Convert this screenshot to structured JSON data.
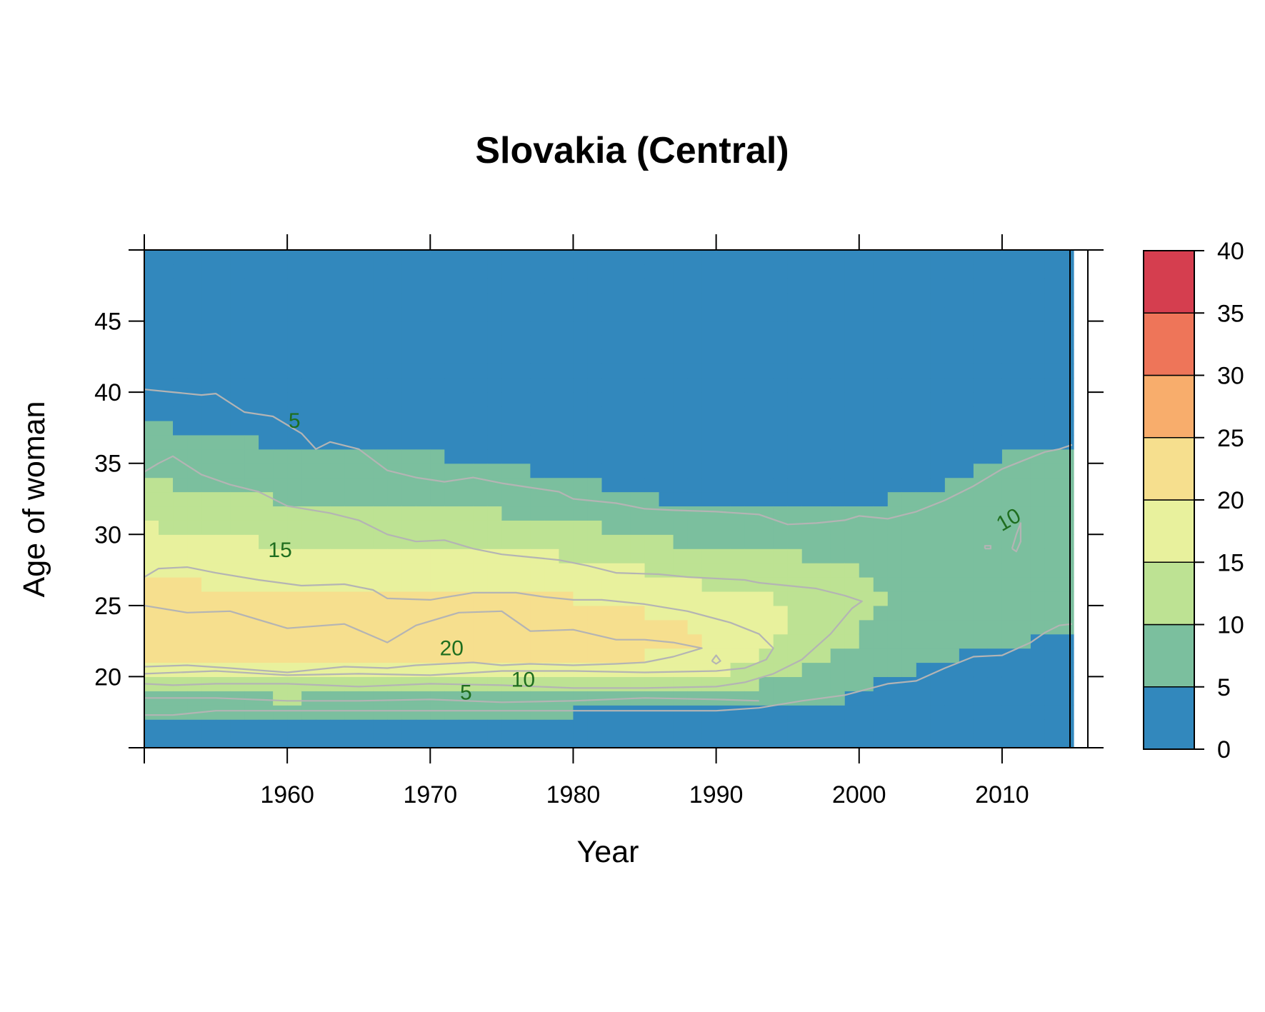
{
  "chart_data": {
    "type": "heatmap",
    "title": "Slovakia (Central)",
    "xlabel": "Year",
    "ylabel": "Age of woman",
    "xlim": [
      1950,
      2016
    ],
    "ylim": [
      15,
      50
    ],
    "x_ticks": [
      "1960",
      "1970",
      "1980",
      "1990",
      "2000",
      "2010"
    ],
    "y_ticks": [
      "20",
      "25",
      "30",
      "35",
      "40",
      "45"
    ],
    "colorbar": {
      "breaks": [
        0,
        5,
        10,
        15,
        20,
        25,
        30,
        35,
        40
      ],
      "labels": [
        "0",
        "5",
        "10",
        "15",
        "20",
        "25",
        "30",
        "35",
        "40"
      ],
      "colors": [
        "#3288bd",
        "#7bbf9e",
        "#bde293",
        "#e8f19d",
        "#f6df8e",
        "#f8ad6c",
        "#ee7559",
        "#d53e4f"
      ]
    },
    "contour_color": "#b4b4b4",
    "label_color": "#1f6e1f",
    "contour_labels": [
      {
        "text": "5",
        "year": 1960.5,
        "age": 37.5,
        "angle": 0
      },
      {
        "text": "15",
        "year": 1959.5,
        "age": 28.4,
        "angle": 0
      },
      {
        "text": "20",
        "year": 1971.5,
        "age": 21.5,
        "angle": 0
      },
      {
        "text": "5",
        "year": 1972.5,
        "age": 18.4,
        "angle": 0
      },
      {
        "text": "10",
        "year": 1976.5,
        "age": 19.3,
        "angle": 0
      },
      {
        "text": "10",
        "year": 2010.7,
        "age": 30.6,
        "angle": -30
      }
    ],
    "contours": [
      {
        "level": 5,
        "year": [
          1950,
          1952,
          1954,
          1955,
          1957,
          1959,
          1961,
          1962,
          1963,
          1965,
          1967,
          1969,
          1971,
          1973,
          1975,
          1977,
          1979,
          1980,
          1983,
          1985,
          1987,
          1990,
          1993,
          1995,
          1997,
          1999,
          2000,
          2002,
          2004,
          2006,
          2008,
          2010,
          2011,
          2012,
          2013,
          2014,
          2014.9
        ],
        "age": [
          40.2,
          40.0,
          39.8,
          39.9,
          38.6,
          38.3,
          37.1,
          36.0,
          36.5,
          36.0,
          34.5,
          34.0,
          33.7,
          34.0,
          33.6,
          33.3,
          33.0,
          32.5,
          32.2,
          31.8,
          31.7,
          31.6,
          31.4,
          30.7,
          30.8,
          31.0,
          31.3,
          31.1,
          31.6,
          32.4,
          33.4,
          34.6,
          35.0,
          35.4,
          35.8,
          36.0,
          36.3
        ]
      },
      {
        "level": 5,
        "year": [
          1950,
          1952,
          1955,
          1960,
          1965,
          1970,
          1975,
          1980,
          1985,
          1990,
          1993,
          1996,
          1999,
          2002,
          2004,
          2006,
          2008,
          2010,
          2012,
          2013,
          2014,
          2014.9
        ],
        "age": [
          17.3,
          17.3,
          17.6,
          17.6,
          17.6,
          17.6,
          17.6,
          17.6,
          17.6,
          17.6,
          17.8,
          18.3,
          18.7,
          19.5,
          19.7,
          20.6,
          21.4,
          21.5,
          22.4,
          23.1,
          23.6,
          23.7
        ]
      },
      {
        "level": 10,
        "year": [
          1950,
          1951,
          1952,
          1954,
          1956,
          1958,
          1960,
          1963,
          1965,
          1967,
          1969,
          1971,
          1973,
          1975,
          1977,
          1979,
          1981,
          1983,
          1986,
          1988,
          1990,
          1992,
          1993,
          1995,
          1997,
          1999,
          2000.2,
          1999.5,
          1998,
          1996,
          1994,
          1992,
          1990,
          1985,
          1980,
          1975,
          1970,
          1965,
          1960,
          1955,
          1952,
          1950
        ],
        "age": [
          34.4,
          35.0,
          35.5,
          34.2,
          33.5,
          33.0,
          32.0,
          31.5,
          31.0,
          30.0,
          29.5,
          29.6,
          29.0,
          28.6,
          28.4,
          28.2,
          27.8,
          27.3,
          27.2,
          27.0,
          26.9,
          26.8,
          26.6,
          26.4,
          26.2,
          25.7,
          25.3,
          24.8,
          23.0,
          21.2,
          20.2,
          19.6,
          19.3,
          19.2,
          19.2,
          19.4,
          19.5,
          19.3,
          19.5,
          19.5,
          19.4,
          19.5
        ]
      },
      {
        "level": 10,
        "year": [
          1950,
          1955,
          1960,
          1965,
          1970,
          1975,
          1980,
          1985,
          1990,
          1993
        ],
        "age": [
          18.5,
          18.5,
          18.3,
          18.3,
          18.4,
          18.2,
          18.3,
          18.5,
          18.4,
          18.3
        ]
      },
      {
        "level": 10,
        "year": [
          2010.7,
          2011.0,
          2011.3,
          2011.3,
          2011.0,
          2010.7,
          2010.7
        ],
        "age": [
          29.0,
          30.0,
          30.8,
          29.5,
          28.8,
          29.0,
          29.0
        ]
      },
      {
        "level": 15,
        "year": [
          1950,
          1951,
          1953,
          1955,
          1958,
          1961,
          1964,
          1966,
          1967,
          1970,
          1973,
          1976,
          1978,
          1980,
          1982,
          1985,
          1988,
          1991,
          1993,
          1994,
          1993.5,
          1992,
          1990,
          1985,
          1980,
          1975,
          1970,
          1965,
          1960,
          1955,
          1950
        ],
        "age": [
          27.0,
          27.6,
          27.7,
          27.3,
          26.8,
          26.4,
          26.5,
          26.1,
          25.5,
          25.4,
          25.9,
          25.9,
          25.6,
          25.4,
          25.4,
          25.1,
          24.6,
          23.8,
          23.0,
          22.0,
          21.2,
          20.6,
          20.4,
          20.3,
          20.4,
          20.4,
          20.1,
          20.2,
          20.1,
          20.4,
          20.2
        ]
      },
      {
        "level": 20,
        "year": [
          1950,
          1953,
          1956,
          1960,
          1964,
          1967,
          1969,
          1971,
          1973,
          1975,
          1977,
          1980,
          1983,
          1985,
          1987,
          1989,
          1987,
          1985,
          1983,
          1980,
          1977,
          1975,
          1972,
          1969,
          1967,
          1964,
          1960,
          1956,
          1953,
          1950
        ],
        "age": [
          20.7,
          20.8,
          20.6,
          20.3,
          20.7,
          20.6,
          20.8,
          20.9,
          21.0,
          20.8,
          20.9,
          20.8,
          20.9,
          21.0,
          21.4,
          22.0,
          22.4,
          22.6,
          22.6,
          23.3,
          23.2,
          24.6,
          24.5,
          23.6,
          22.4,
          23.7,
          23.4,
          24.6,
          24.5,
          25.0
        ]
      },
      {
        "level": 20,
        "year": [
          1989.7,
          1990.0,
          1990.3,
          1990.0,
          1989.7
        ],
        "age": [
          21.1,
          21.5,
          21.1,
          20.9,
          21.1
        ]
      },
      {
        "level": 20,
        "year": [
          2008.8,
          2009.2,
          2009.2,
          2008.8,
          2008.8
        ],
        "age": [
          29.0,
          29.0,
          29.2,
          29.2,
          29.0
        ]
      }
    ],
    "cell_width_years": 1,
    "cell_height_years": 1,
    "surface_model": {
      "note": "rates by year and age; heatmap cells sampled from this profile",
      "peak_age": [
        [
          1950,
          23.0
        ],
        [
          1960,
          22.5
        ],
        [
          1970,
          22.7
        ],
        [
          1980,
          22.6
        ],
        [
          1990,
          22.3
        ],
        [
          2000,
          25.0
        ],
        [
          2010,
          28.5
        ],
        [
          2015,
          29.5
        ]
      ],
      "peak_rate": [
        [
          1950,
          22.5
        ],
        [
          1960,
          21.5
        ],
        [
          1970,
          22.0
        ],
        [
          1980,
          22.2
        ],
        [
          1988,
          20.5
        ],
        [
          1993,
          17.0
        ],
        [
          1997,
          13.0
        ],
        [
          2001,
          10.2
        ],
        [
          2005,
          9.0
        ],
        [
          2010,
          9.6
        ],
        [
          2015,
          9.6
        ]
      ],
      "young_width": [
        [
          1950,
          3.4
        ],
        [
          1990,
          2.8
        ],
        [
          2000,
          5.0
        ],
        [
          2015,
          5.8
        ]
      ],
      "old_width": [
        [
          1950,
          8.5
        ],
        [
          1970,
          7.5
        ],
        [
          1990,
          5.6
        ],
        [
          2000,
          5.8
        ],
        [
          2015,
          6.2
        ]
      ]
    }
  }
}
